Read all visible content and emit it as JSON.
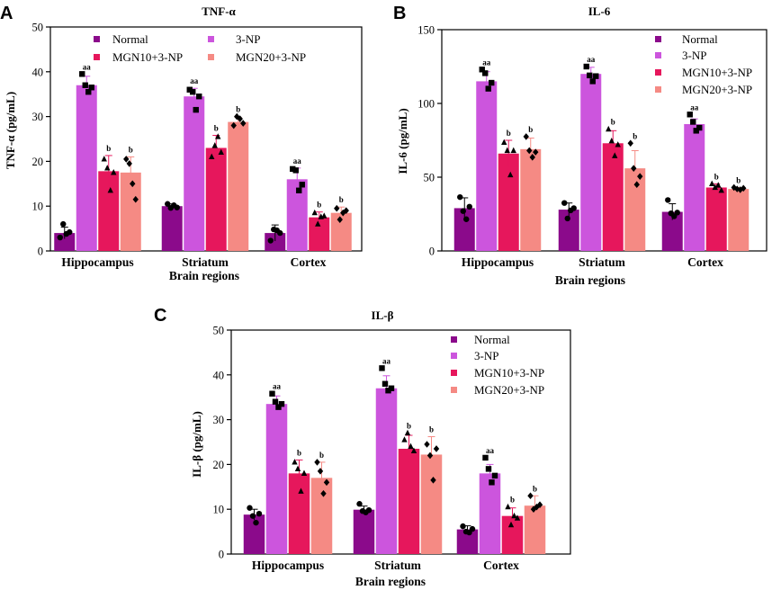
{
  "legend": [
    "Normal",
    "3-NP",
    "MGN10+3-NP",
    "MGN20+3-NP"
  ],
  "colors": [
    "#8b0a8b",
    "#cc55dd",
    "#e6175c",
    "#f58a84"
  ],
  "chart_data": [
    {
      "type": "bar",
      "panel_label": "A",
      "title": "TNF-α",
      "ylabel": "TNF-α (pg/mL)",
      "xlabel": "Brain regions",
      "ylim": [
        0,
        50
      ],
      "yticks": [
        "0",
        "10",
        "20",
        "30",
        "40",
        "50"
      ],
      "categories": [
        "Hippocampus",
        "Striatum",
        "Cortex"
      ],
      "legend_position": "top (two rows)",
      "series": [
        {
          "name": "Normal",
          "values": [
            4,
            10,
            4
          ],
          "errors": [
            1.3,
            0.5,
            1.8
          ],
          "points": [
            [
              3,
              6,
              3.8,
              4.2
            ],
            [
              10.5,
              9.6,
              10.2,
              9.7
            ],
            [
              2.3,
              4.8,
              4.6,
              4
            ]
          ]
        },
        {
          "name": "3-NP",
          "values": [
            37,
            34.5,
            16
          ],
          "errors": [
            2,
            1.8,
            2.5
          ],
          "points": [
            [
              39.5,
              37,
              35.5,
              36.5
            ],
            [
              36,
              35.5,
              31.5,
              34.5
            ],
            [
              18.3,
              18,
              13.5,
              14.8
            ]
          ]
        },
        {
          "name": "MGN10+3-NP",
          "values": [
            17.8,
            23,
            7.5
          ],
          "errors": [
            3.5,
            2.8,
            1.2
          ],
          "points": [
            [
              20.5,
              18.5,
              13.5,
              17.5
            ],
            [
              21,
              23.5,
              25.5,
              22
            ],
            [
              8.5,
              6,
              7.6,
              7.8
            ]
          ]
        },
        {
          "name": "MGN20+3-NP",
          "values": [
            17.5,
            28.8,
            8.5
          ],
          "errors": [
            3.5,
            1,
            1.3
          ],
          "points": [
            [
              20.5,
              19.5,
              15,
              11.5
            ],
            [
              28,
              30,
              29.5,
              28.5
            ],
            [
              9.5,
              7,
              8.5,
              9
            ]
          ]
        }
      ],
      "annotations": [
        [
          "",
          "aa",
          "b",
          "b"
        ],
        [
          "",
          "aa",
          "b",
          "b"
        ],
        [
          "",
          "aa",
          "b",
          "b"
        ]
      ]
    },
    {
      "type": "bar",
      "panel_label": "B",
      "title": "IL-6",
      "ylabel": "IL-6 (pg/mL)",
      "xlabel": "Brain regions",
      "ylim": [
        0,
        150
      ],
      "yticks": [
        "0",
        "50",
        "100",
        "150"
      ],
      "categories": [
        "Hippocampus",
        "Striatum",
        "Cortex"
      ],
      "legend_position": "top-right",
      "series": [
        {
          "name": "Normal",
          "values": [
            29,
            28,
            26.5
          ],
          "errors": [
            7,
            4.5,
            5.5
          ],
          "points": [
            [
              36.5,
              27,
              21.5,
              30
            ],
            [
              32.5,
              22,
              27.5,
              29
            ],
            [
              34.5,
              25.5,
              23.5,
              26
            ]
          ]
        },
        {
          "name": "3-NP",
          "values": [
            115,
            120,
            86
          ],
          "errors": [
            6.5,
            4.5,
            3.5
          ],
          "points": [
            [
              123,
              120.5,
              110,
              114
            ],
            [
              125,
              119,
              115,
              118.5
            ],
            [
              92.5,
              87.5,
              81.5,
              83.5
            ]
          ]
        },
        {
          "name": "MGN10+3-NP",
          "values": [
            66,
            73,
            43
          ],
          "errors": [
            9,
            8.5,
            2.5
          ],
          "points": [
            [
              73.5,
              68,
              51.5,
              68
            ],
            [
              82.5,
              74.5,
              64.5,
              72
            ],
            [
              45.5,
              43,
              44.5,
              41
            ]
          ]
        },
        {
          "name": "MGN20+3-NP",
          "values": [
            69,
            56,
            42
          ],
          "errors": [
            7.5,
            12,
            1
          ],
          "points": [
            [
              77.5,
              68,
              63.5,
              67
            ],
            [
              73,
              56,
              45,
              50.5
            ],
            [
              43,
              42,
              41.5,
              42.5
            ]
          ]
        }
      ],
      "annotations": [
        [
          "",
          "aa",
          "b",
          "b"
        ],
        [
          "",
          "aa",
          "b",
          "b"
        ],
        [
          "",
          "aa",
          "b",
          "b"
        ]
      ]
    },
    {
      "type": "bar",
      "panel_label": "C",
      "title": "IL-β",
      "ylabel": "IL-β (pg/mL)",
      "xlabel": "Brain regions",
      "ylim": [
        0,
        50
      ],
      "yticks": [
        "0",
        "10",
        "20",
        "30",
        "40",
        "50"
      ],
      "categories": [
        "Hippocampus",
        "Striatum",
        "Cortex"
      ],
      "legend_position": "top-right",
      "series": [
        {
          "name": "Normal",
          "values": [
            8.8,
            9.9,
            5.5
          ],
          "errors": [
            1.2,
            0.8,
            0.8
          ],
          "points": [
            [
              10.3,
              8.5,
              7,
              9
            ],
            [
              11.2,
              9.6,
              9.3,
              9.8
            ],
            [
              6.2,
              5,
              4.8,
              5.6
            ]
          ]
        },
        {
          "name": "3-NP",
          "values": [
            33.5,
            37,
            18
          ],
          "errors": [
            1.8,
            2.8,
            2
          ],
          "points": [
            [
              35.8,
              34,
              32.8,
              33.5
            ],
            [
              41.5,
              38,
              36.5,
              37
            ],
            [
              21.5,
              19,
              16,
              17.5
            ]
          ]
        },
        {
          "name": "MGN10+3-NP",
          "values": [
            18,
            23.5,
            8.5
          ],
          "errors": [
            3,
            3,
            1.8
          ],
          "points": [
            [
              20.5,
              19,
              14,
              18
            ],
            [
              25.5,
              27,
              24,
              23
            ],
            [
              10.5,
              6.5,
              8.5,
              8
            ]
          ]
        },
        {
          "name": "MGN20+3-NP",
          "values": [
            17,
            22.2,
            10.8
          ],
          "errors": [
            3.5,
            4,
            2.2
          ],
          "points": [
            [
              20.5,
              18.5,
              13.5,
              16
            ],
            [
              24.5,
              22,
              16.5,
              23.5
            ],
            [
              13,
              10,
              10.5,
              11
            ]
          ]
        }
      ],
      "annotations": [
        [
          "",
          "aa",
          "b",
          "b"
        ],
        [
          "",
          "aa",
          "b",
          "b"
        ],
        [
          "",
          "aa",
          "b",
          "b"
        ]
      ]
    }
  ]
}
